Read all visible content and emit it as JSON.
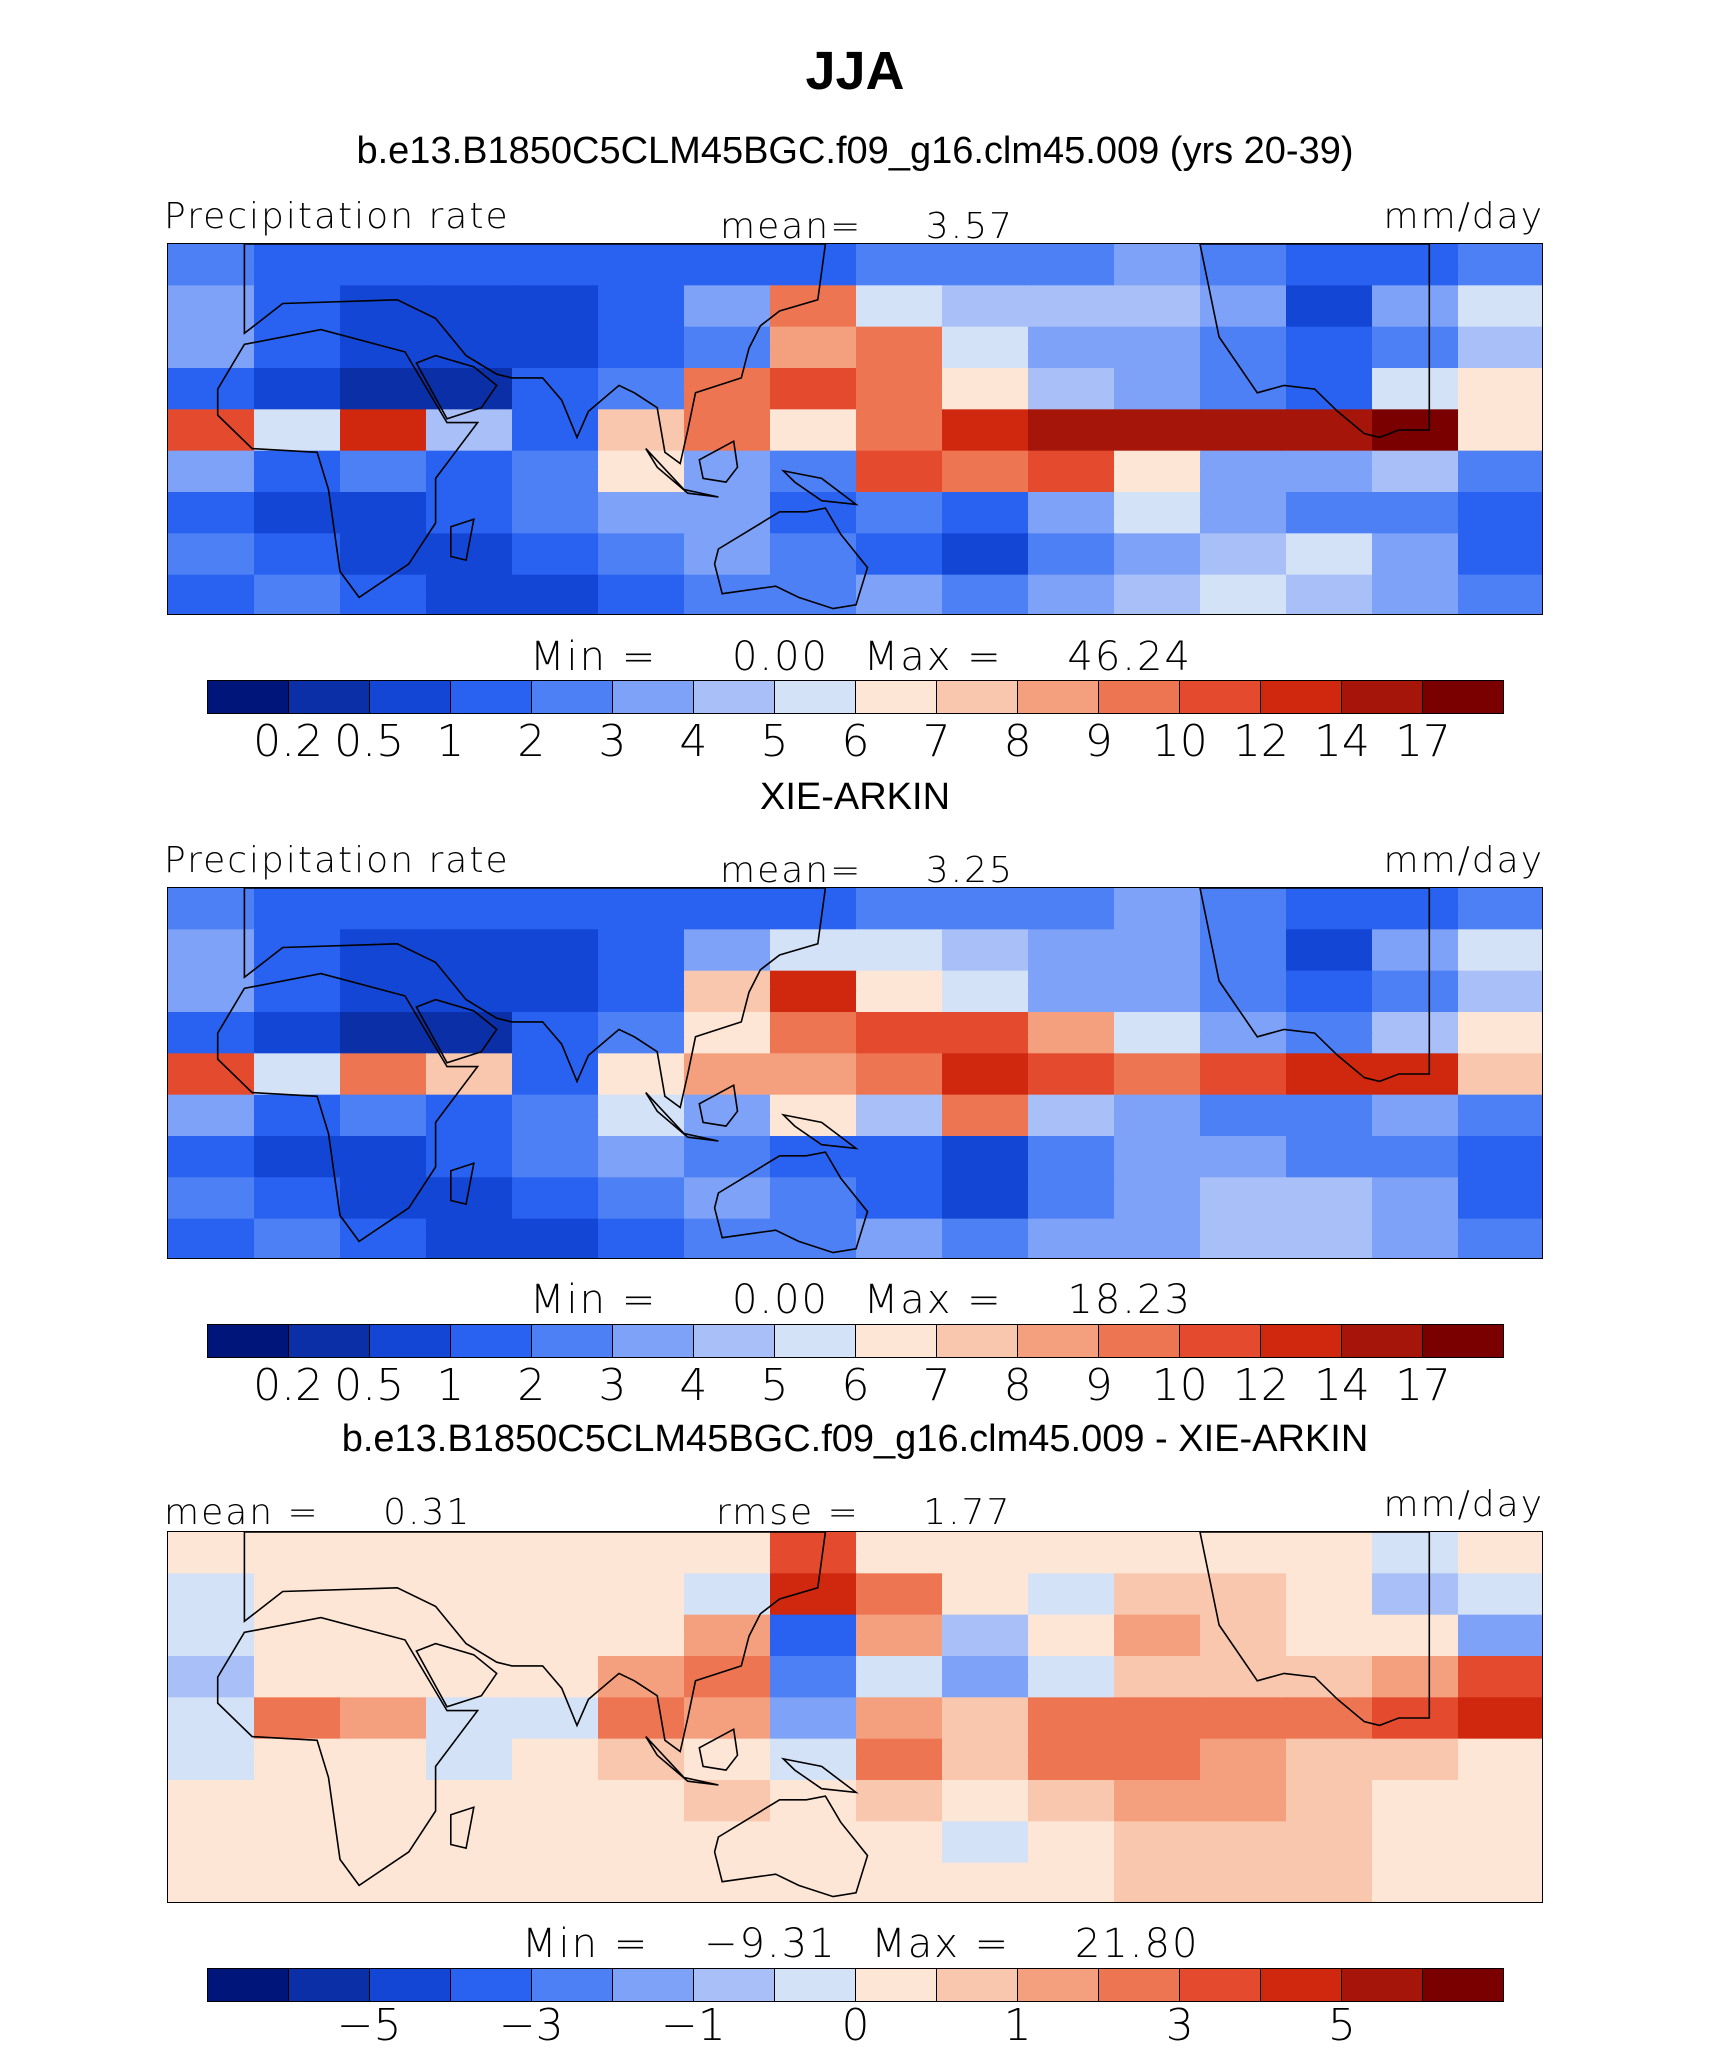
{
  "title": "JJA",
  "colors": {
    "abs_scale": [
      "#00157a",
      "#0a2fa6",
      "#1446d6",
      "#2962f0",
      "#4d80f5",
      "#7da2f7",
      "#a8c0f7",
      "#d4e2f7",
      "#fde6d5",
      "#f8c7ae",
      "#f4a07f",
      "#ee7552",
      "#e44a2e",
      "#d0280f",
      "#a5150a",
      "#7a0000"
    ],
    "diff_scale": [
      "#00157a",
      "#0a2fa6",
      "#1446d6",
      "#2962f0",
      "#4d80f5",
      "#7da2f7",
      "#a8c0f7",
      "#d4e2f7",
      "#fde6d5",
      "#f8c7ae",
      "#f4a07f",
      "#ee7552",
      "#e44a2e",
      "#d0280f",
      "#a5150a",
      "#7a0000"
    ],
    "coastline": "#000000"
  },
  "panels": [
    {
      "id": "model",
      "title": "b.e13.B1850C5CLM45BGC.f09_g16.clm45.009 (yrs 20-39)",
      "variable": "Precipitation rate",
      "units": "mm/day",
      "stat_label": "mean=",
      "stat_value": "3.57",
      "min_label": "Min  =",
      "min_value": "0.00",
      "max_label": "Max  =",
      "max_value": "46.24",
      "tick_labels": [
        "0.2",
        "0.5",
        "1",
        "2",
        "3",
        "4",
        "5",
        "6",
        "7",
        "8",
        "9",
        "10",
        "12",
        "14",
        "17"
      ]
    },
    {
      "id": "obs",
      "title": "XIE-ARKIN",
      "variable": "Precipitation rate",
      "units": "mm/day",
      "stat_label": "mean=",
      "stat_value": "3.25",
      "min_label": "Min  =",
      "min_value": "0.00",
      "max_label": "Max  =",
      "max_value": "18.23",
      "tick_labels": [
        "0.2",
        "0.5",
        "1",
        "2",
        "3",
        "4",
        "5",
        "6",
        "7",
        "8",
        "9",
        "10",
        "12",
        "14",
        "17"
      ]
    },
    {
      "id": "diff",
      "title": "b.e13.B1850C5CLM45BGC.f09_g16.clm45.009 - XIE-ARKIN",
      "units": "mm/day",
      "mean_label": "mean  =",
      "mean_value": "0.31",
      "rmse_label": "rmse  =",
      "rmse_value": "1.77",
      "min_label": "Min  =",
      "min_value": "−9.31",
      "max_label": "Max  =",
      "max_value": "21.80",
      "tick_labels": [
        "−5",
        "−3",
        "−1",
        "0",
        "1",
        "3",
        "5"
      ]
    }
  ],
  "chart_data": [
    {
      "type": "heatmap",
      "title": "b.e13.B1850C5CLM45BGC.f09_g16.clm45.009 (yrs 20-39)",
      "variable": "Precipitation rate",
      "units": "mm/day",
      "mean": 3.57,
      "min": 0.0,
      "max": 46.24,
      "contour_levels": [
        0.2,
        0.5,
        1,
        2,
        3,
        4,
        5,
        6,
        7,
        8,
        9,
        10,
        12,
        14,
        17
      ],
      "bands": [
        {
          "lat": 80,
          "values": [
            2,
            1,
            1,
            1,
            1,
            1,
            1,
            1,
            2,
            2,
            2,
            3,
            2,
            1,
            1,
            2
          ]
        },
        {
          "lat": 60,
          "values": [
            3,
            1,
            0.5,
            0.5,
            0.5,
            1,
            3,
            9,
            5,
            4,
            4,
            4,
            3,
            0.5,
            3,
            5
          ]
        },
        {
          "lat": 40,
          "values": [
            3,
            1,
            0.5,
            0.5,
            0.5,
            1,
            2,
            8,
            9,
            5,
            3,
            3,
            2,
            1,
            2,
            4
          ]
        },
        {
          "lat": 20,
          "values": [
            1,
            0.5,
            0.2,
            0.2,
            1,
            2,
            9,
            10,
            9,
            6,
            4,
            3,
            2,
            1,
            5,
            6
          ]
        },
        {
          "lat": 0,
          "values": [
            10,
            5,
            12,
            4,
            1,
            7,
            9,
            6,
            9,
            12,
            14,
            14,
            14,
            14,
            17,
            6
          ]
        },
        {
          "lat": -20,
          "values": [
            3,
            1,
            2,
            1,
            2,
            6,
            3,
            2,
            10,
            9,
            10,
            6,
            3,
            3,
            4,
            2
          ]
        },
        {
          "lat": -40,
          "values": [
            1,
            0.5,
            0.5,
            1,
            2,
            3,
            3,
            1,
            2,
            1,
            3,
            5,
            3,
            2,
            2,
            1
          ]
        },
        {
          "lat": -60,
          "values": [
            2,
            1,
            0.5,
            0.5,
            1,
            2,
            3,
            2,
            1,
            0.5,
            2,
            3,
            4,
            5,
            3,
            1
          ]
        },
        {
          "lat": -80,
          "values": [
            1,
            2,
            1,
            0.5,
            0.5,
            1,
            2,
            2,
            3,
            2,
            3,
            4,
            5,
            4,
            3,
            2
          ]
        }
      ],
      "band_lon_range": [
        -30,
        330
      ]
    },
    {
      "type": "heatmap",
      "title": "XIE-ARKIN",
      "variable": "Precipitation rate",
      "units": "mm/day",
      "mean": 3.25,
      "min": 0.0,
      "max": 18.23,
      "contour_levels": [
        0.2,
        0.5,
        1,
        2,
        3,
        4,
        5,
        6,
        7,
        8,
        9,
        10,
        12,
        14,
        17
      ],
      "bands": [
        {
          "lat": 80,
          "values": [
            2,
            1,
            1,
            1,
            1,
            1,
            1,
            1,
            2,
            2,
            2,
            3,
            2,
            1,
            1,
            2
          ]
        },
        {
          "lat": 60,
          "values": [
            3,
            1,
            0.5,
            0.5,
            0.5,
            1,
            3,
            5,
            5,
            4,
            3,
            3,
            2,
            0.5,
            3,
            5
          ]
        },
        {
          "lat": 40,
          "values": [
            3,
            1,
            0.5,
            0.5,
            0.5,
            1,
            7,
            12,
            6,
            5,
            3,
            3,
            2,
            1,
            2,
            4
          ]
        },
        {
          "lat": 20,
          "values": [
            1,
            0.5,
            0.2,
            0.2,
            1,
            2,
            6,
            9,
            10,
            10,
            8,
            5,
            3,
            2,
            4,
            6
          ]
        },
        {
          "lat": 0,
          "values": [
            10,
            5,
            9,
            7,
            1,
            6,
            8,
            8,
            9,
            12,
            10,
            9,
            10,
            12,
            12,
            7
          ]
        },
        {
          "lat": -20,
          "values": [
            3,
            1,
            2,
            1,
            2,
            5,
            3,
            6,
            4,
            9,
            4,
            3,
            2,
            2,
            3,
            2
          ]
        },
        {
          "lat": -40,
          "values": [
            1,
            0.5,
            0.5,
            1,
            2,
            3,
            2,
            1,
            1,
            0.5,
            2,
            3,
            3,
            2,
            2,
            1
          ]
        },
        {
          "lat": -60,
          "values": [
            2,
            1,
            0.5,
            0.5,
            1,
            2,
            3,
            2,
            1,
            0.5,
            2,
            3,
            4,
            4,
            3,
            1
          ]
        },
        {
          "lat": -80,
          "values": [
            1,
            2,
            1,
            0.5,
            0.5,
            1,
            2,
            2,
            3,
            2,
            3,
            3,
            4,
            4,
            3,
            2
          ]
        }
      ],
      "band_lon_range": [
        -30,
        330
      ]
    },
    {
      "type": "heatmap",
      "title": "b.e13.B1850C5CLM45BGC.f09_g16.clm45.009 - XIE-ARKIN",
      "units": "mm/day",
      "mean": 0.31,
      "rmse": 1.77,
      "min": -9.31,
      "max": 21.8,
      "contour_levels": [
        -5,
        -3,
        -1,
        0,
        1,
        3,
        5
      ],
      "bands": [
        {
          "lat": 80,
          "values": [
            0.5,
            0.5,
            0,
            0,
            0,
            0,
            0.5,
            4,
            0,
            0,
            0,
            0.5,
            0,
            0,
            -0.5,
            0
          ]
        },
        {
          "lat": 60,
          "values": [
            -0.5,
            0,
            0,
            0.5,
            0,
            0,
            -1,
            5,
            3,
            0,
            -1,
            1,
            1,
            0,
            -2,
            -1
          ]
        },
        {
          "lat": 40,
          "values": [
            -1,
            0,
            0.5,
            0.5,
            0,
            0,
            2,
            -5,
            2,
            -2,
            0,
            2,
            1,
            0,
            0,
            -3
          ]
        },
        {
          "lat": 20,
          "values": [
            -2,
            0.5,
            0.5,
            0.5,
            0,
            2,
            3,
            -4,
            -1,
            -3,
            -1,
            1,
            1,
            1,
            2,
            4
          ]
        },
        {
          "lat": 0,
          "values": [
            -1,
            3,
            2,
            -1,
            -1,
            3,
            2,
            -3,
            2,
            1,
            3,
            3,
            3,
            3,
            4,
            5
          ]
        },
        {
          "lat": -20,
          "values": [
            -1,
            0,
            0,
            -0.5,
            0.5,
            1,
            0.5,
            -1,
            3,
            1,
            3,
            3,
            2,
            1,
            1,
            0
          ]
        },
        {
          "lat": -40,
          "values": [
            0,
            0,
            0.5,
            0,
            0,
            0.5,
            1,
            0,
            1,
            0.5,
            1,
            2,
            2,
            1,
            0.5,
            0
          ]
        },
        {
          "lat": -60,
          "values": [
            0,
            0,
            0,
            0,
            0,
            0.5,
            0.5,
            0,
            0,
            -0.5,
            0.5,
            1,
            1,
            1,
            0.5,
            0
          ]
        },
        {
          "lat": -80,
          "values": [
            0,
            0.5,
            0,
            0,
            0,
            0,
            0.5,
            0,
            0.5,
            0,
            0.5,
            1,
            1,
            1,
            0.5,
            0
          ]
        }
      ],
      "band_lon_range": [
        -30,
        330
      ]
    }
  ]
}
